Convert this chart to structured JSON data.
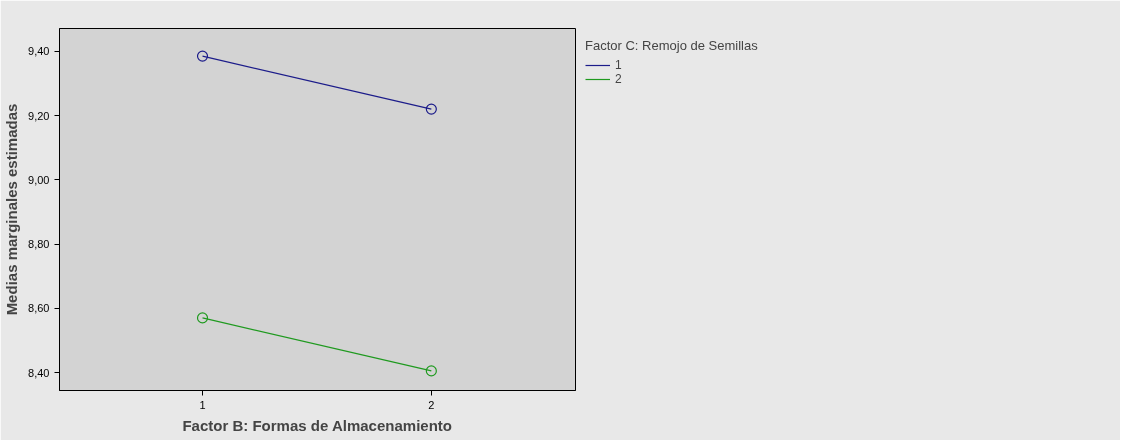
{
  "chart_data": {
    "type": "line",
    "xlabel": "Factor B: Formas de Almacenamiento",
    "ylabel": "Medias marginales estimadas",
    "legend_title": "Factor C: Remojo de Semillas",
    "categories": [
      "1",
      "2"
    ],
    "series": [
      {
        "name": "1",
        "color": "#1c1c8a",
        "values": [
          9.385,
          9.22
        ]
      },
      {
        "name": "2",
        "color": "#1f9a1f",
        "values": [
          8.57,
          8.405
        ]
      }
    ],
    "ylim": [
      8.344,
      9.471
    ],
    "yticks": [
      {
        "value": 8.4,
        "label": "8,40"
      },
      {
        "value": 8.6,
        "label": "8,60"
      },
      {
        "value": 8.8,
        "label": "8,80"
      },
      {
        "value": 9.0,
        "label": "9,00"
      },
      {
        "value": 9.2,
        "label": "9,20"
      },
      {
        "value": 9.4,
        "label": "9,40"
      }
    ],
    "grid": false,
    "legend": "top right",
    "marker": "circle",
    "line_style": "solid"
  }
}
